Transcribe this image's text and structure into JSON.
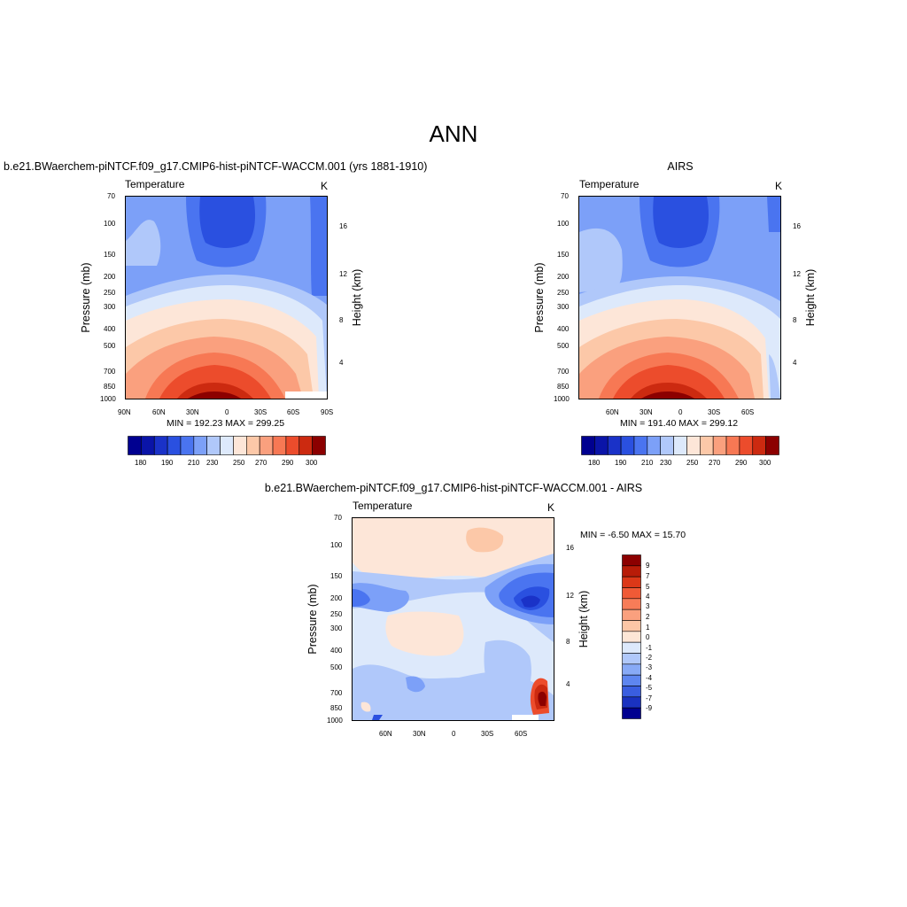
{
  "page": {
    "title": "ANN"
  },
  "diff_title": "b.e21.BWaerchem-piNTCF.f09_g17.CMIP6-hist-piNTCF-WACCM.001 - AIRS",
  "chart_data": [
    {
      "type": "heatmap",
      "title": "b.e21.BWaerchem-piNTCF.f09_g17.CMIP6-hist-piNTCF-WACCM.001 (yrs 1881-1910)",
      "variable": "Temperature",
      "units": "K",
      "xlabel": "",
      "ylabel": "Pressure (mb)",
      "y2label": "Height (km)",
      "x_ticks": [
        "90N",
        "60N",
        "30N",
        "0",
        "30S",
        "60S",
        "90S"
      ],
      "y_ticks": [
        "70",
        "100",
        "150",
        "200",
        "250",
        "300",
        "400",
        "500",
        "700",
        "850",
        "1000"
      ],
      "y2_ticks": [
        "16",
        "12",
        "8",
        "4"
      ],
      "stats": "MIN = 192.23  MAX = 299.25",
      "min": 192.23,
      "max": 299.25,
      "colorbar_labels": [
        "180",
        "190",
        "210",
        "230",
        "250",
        "270",
        "290",
        "300"
      ],
      "colorbar_colors": [
        "#000090",
        "#0a14a8",
        "#1a32c8",
        "#2a50e0",
        "#4a74f0",
        "#7ca0f8",
        "#b0c8fa",
        "#dde9fb",
        "#fde6d8",
        "#fcc8a8",
        "#faa07e",
        "#f77854",
        "#ec4c2c",
        "#cc2a10",
        "#8c0000"
      ]
    },
    {
      "type": "heatmap",
      "title": "AIRS",
      "variable": "Temperature",
      "units": "K",
      "xlabel": "",
      "ylabel": "Pressure (mb)",
      "y2label": "Height (km)",
      "x_ticks": [
        "60N",
        "30N",
        "0",
        "30S",
        "60S"
      ],
      "y_ticks": [
        "70",
        "100",
        "150",
        "200",
        "250",
        "300",
        "400",
        "500",
        "700",
        "850",
        "1000"
      ],
      "y2_ticks": [
        "16",
        "12",
        "8",
        "4"
      ],
      "stats": "MIN = 191.40  MAX = 299.12",
      "min": 191.4,
      "max": 299.12,
      "colorbar_labels": [
        "180",
        "190",
        "210",
        "230",
        "250",
        "270",
        "290",
        "300"
      ],
      "colorbar_colors": [
        "#000090",
        "#0a14a8",
        "#1a32c8",
        "#2a50e0",
        "#4a74f0",
        "#7ca0f8",
        "#b0c8fa",
        "#dde9fb",
        "#fde6d8",
        "#fcc8a8",
        "#faa07e",
        "#f77854",
        "#ec4c2c",
        "#cc2a10",
        "#8c0000"
      ]
    },
    {
      "type": "heatmap",
      "title": "",
      "variable": "Temperature",
      "units": "K",
      "xlabel": "",
      "ylabel": "Pressure (mb)",
      "y2label": "Height (km)",
      "x_ticks": [
        "60N",
        "30N",
        "0",
        "30S",
        "60S"
      ],
      "y_ticks": [
        "70",
        "100",
        "150",
        "200",
        "250",
        "300",
        "400",
        "500",
        "700",
        "850",
        "1000"
      ],
      "y2_ticks": [
        "16",
        "12",
        "8",
        "4"
      ],
      "stats": "MIN =  -6.50  MAX =  15.70",
      "min": -6.5,
      "max": 15.7,
      "colorbar_labels": [
        "9",
        "7",
        "5",
        "4",
        "3",
        "2",
        "1",
        "0",
        "-1",
        "-2",
        "-3",
        "-4",
        "-5",
        "-7",
        "-9"
      ],
      "colorbar_colors": [
        "#8c0000",
        "#b81c08",
        "#dc3818",
        "#f05a36",
        "#f77c58",
        "#faa07e",
        "#fcc6a6",
        "#fde6d6",
        "#dde9fb",
        "#b0c8fa",
        "#88aaf6",
        "#5e86f0",
        "#3a5ee0",
        "#1a32c0",
        "#000090"
      ]
    }
  ]
}
